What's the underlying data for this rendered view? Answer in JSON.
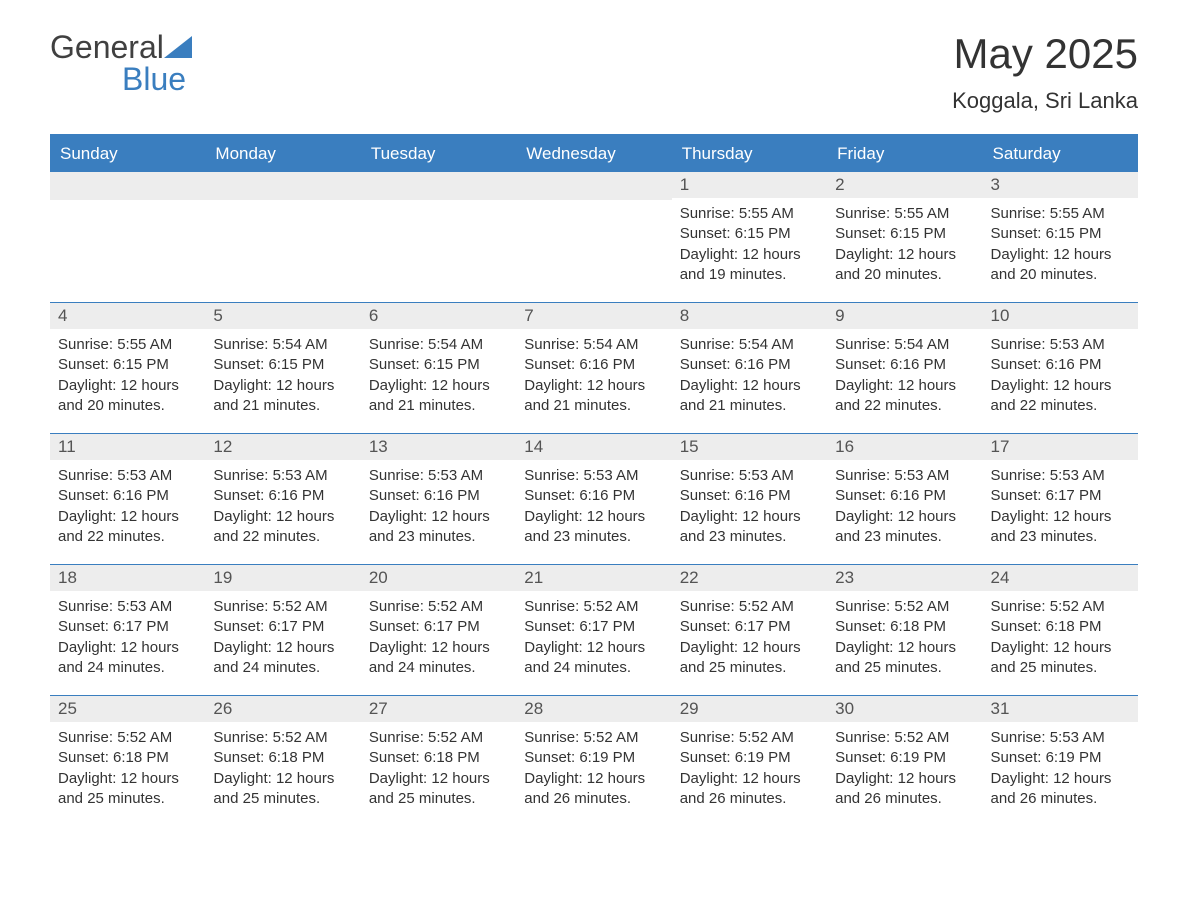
{
  "logo": {
    "word1": "General",
    "word2": "Blue",
    "accent_color": "#3a7ebf"
  },
  "title": "May 2025",
  "location": "Koggala, Sri Lanka",
  "colors": {
    "header_bg": "#3a7ebf",
    "header_text": "#ffffff",
    "daynum_bg": "#ededed",
    "daynum_text": "#545454",
    "body_text": "#333333",
    "border": "#3a7ebf",
    "page_bg": "#ffffff"
  },
  "day_names": [
    "Sunday",
    "Monday",
    "Tuesday",
    "Wednesday",
    "Thursday",
    "Friday",
    "Saturday"
  ],
  "weeks": [
    [
      null,
      null,
      null,
      null,
      {
        "n": "1",
        "sunrise": "5:55 AM",
        "sunset": "6:15 PM",
        "daylight": "12 hours and 19 minutes."
      },
      {
        "n": "2",
        "sunrise": "5:55 AM",
        "sunset": "6:15 PM",
        "daylight": "12 hours and 20 minutes."
      },
      {
        "n": "3",
        "sunrise": "5:55 AM",
        "sunset": "6:15 PM",
        "daylight": "12 hours and 20 minutes."
      }
    ],
    [
      {
        "n": "4",
        "sunrise": "5:55 AM",
        "sunset": "6:15 PM",
        "daylight": "12 hours and 20 minutes."
      },
      {
        "n": "5",
        "sunrise": "5:54 AM",
        "sunset": "6:15 PM",
        "daylight": "12 hours and 21 minutes."
      },
      {
        "n": "6",
        "sunrise": "5:54 AM",
        "sunset": "6:15 PM",
        "daylight": "12 hours and 21 minutes."
      },
      {
        "n": "7",
        "sunrise": "5:54 AM",
        "sunset": "6:16 PM",
        "daylight": "12 hours and 21 minutes."
      },
      {
        "n": "8",
        "sunrise": "5:54 AM",
        "sunset": "6:16 PM",
        "daylight": "12 hours and 21 minutes."
      },
      {
        "n": "9",
        "sunrise": "5:54 AM",
        "sunset": "6:16 PM",
        "daylight": "12 hours and 22 minutes."
      },
      {
        "n": "10",
        "sunrise": "5:53 AM",
        "sunset": "6:16 PM",
        "daylight": "12 hours and 22 minutes."
      }
    ],
    [
      {
        "n": "11",
        "sunrise": "5:53 AM",
        "sunset": "6:16 PM",
        "daylight": "12 hours and 22 minutes."
      },
      {
        "n": "12",
        "sunrise": "5:53 AM",
        "sunset": "6:16 PM",
        "daylight": "12 hours and 22 minutes."
      },
      {
        "n": "13",
        "sunrise": "5:53 AM",
        "sunset": "6:16 PM",
        "daylight": "12 hours and 23 minutes."
      },
      {
        "n": "14",
        "sunrise": "5:53 AM",
        "sunset": "6:16 PM",
        "daylight": "12 hours and 23 minutes."
      },
      {
        "n": "15",
        "sunrise": "5:53 AM",
        "sunset": "6:16 PM",
        "daylight": "12 hours and 23 minutes."
      },
      {
        "n": "16",
        "sunrise": "5:53 AM",
        "sunset": "6:16 PM",
        "daylight": "12 hours and 23 minutes."
      },
      {
        "n": "17",
        "sunrise": "5:53 AM",
        "sunset": "6:17 PM",
        "daylight": "12 hours and 23 minutes."
      }
    ],
    [
      {
        "n": "18",
        "sunrise": "5:53 AM",
        "sunset": "6:17 PM",
        "daylight": "12 hours and 24 minutes."
      },
      {
        "n": "19",
        "sunrise": "5:52 AM",
        "sunset": "6:17 PM",
        "daylight": "12 hours and 24 minutes."
      },
      {
        "n": "20",
        "sunrise": "5:52 AM",
        "sunset": "6:17 PM",
        "daylight": "12 hours and 24 minutes."
      },
      {
        "n": "21",
        "sunrise": "5:52 AM",
        "sunset": "6:17 PM",
        "daylight": "12 hours and 24 minutes."
      },
      {
        "n": "22",
        "sunrise": "5:52 AM",
        "sunset": "6:17 PM",
        "daylight": "12 hours and 25 minutes."
      },
      {
        "n": "23",
        "sunrise": "5:52 AM",
        "sunset": "6:18 PM",
        "daylight": "12 hours and 25 minutes."
      },
      {
        "n": "24",
        "sunrise": "5:52 AM",
        "sunset": "6:18 PM",
        "daylight": "12 hours and 25 minutes."
      }
    ],
    [
      {
        "n": "25",
        "sunrise": "5:52 AM",
        "sunset": "6:18 PM",
        "daylight": "12 hours and 25 minutes."
      },
      {
        "n": "26",
        "sunrise": "5:52 AM",
        "sunset": "6:18 PM",
        "daylight": "12 hours and 25 minutes."
      },
      {
        "n": "27",
        "sunrise": "5:52 AM",
        "sunset": "6:18 PM",
        "daylight": "12 hours and 25 minutes."
      },
      {
        "n": "28",
        "sunrise": "5:52 AM",
        "sunset": "6:19 PM",
        "daylight": "12 hours and 26 minutes."
      },
      {
        "n": "29",
        "sunrise": "5:52 AM",
        "sunset": "6:19 PM",
        "daylight": "12 hours and 26 minutes."
      },
      {
        "n": "30",
        "sunrise": "5:52 AM",
        "sunset": "6:19 PM",
        "daylight": "12 hours and 26 minutes."
      },
      {
        "n": "31",
        "sunrise": "5:53 AM",
        "sunset": "6:19 PM",
        "daylight": "12 hours and 26 minutes."
      }
    ]
  ],
  "labels": {
    "sunrise": "Sunrise: ",
    "sunset": "Sunset: ",
    "daylight": "Daylight: "
  }
}
